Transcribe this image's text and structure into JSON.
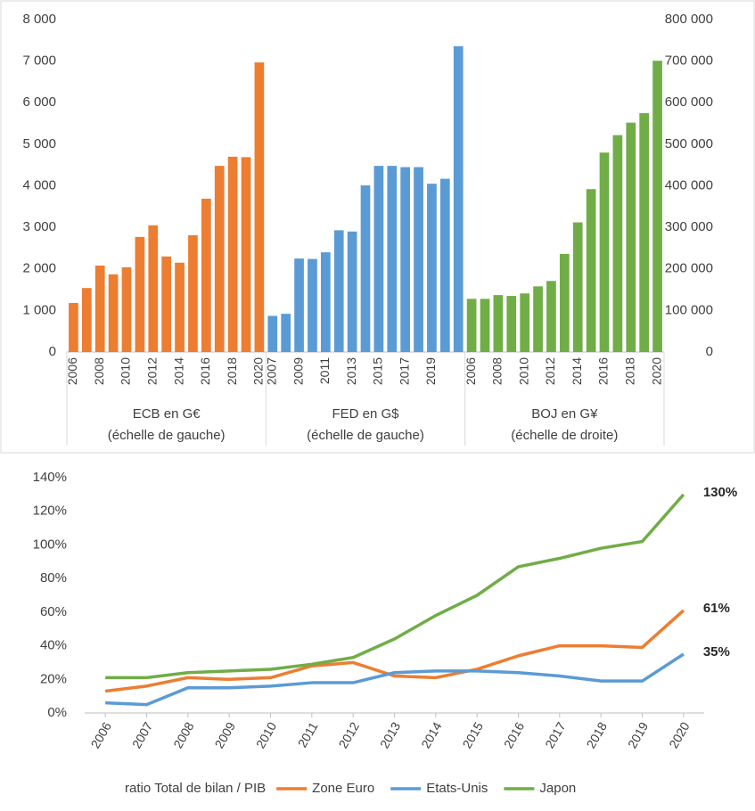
{
  "chart_data": [
    {
      "type": "grouped-bar",
      "series": [
        {
          "name": "ECB en G€",
          "note": "(échelle de gauche)",
          "color": "#ed7d31",
          "axis": "y",
          "categories": [
            "2006",
            null,
            "2008",
            null,
            "2010",
            null,
            "2012",
            null,
            "2014",
            null,
            "2016",
            null,
            "2018",
            null,
            "2020"
          ],
          "values": [
            1180,
            1540,
            2080,
            1870,
            2040,
            2770,
            3050,
            2300,
            2150,
            2810,
            3690,
            4480,
            4700,
            4690,
            6970
          ]
        },
        {
          "name": "FED en G$",
          "note": "(échelle de gauche)",
          "color": "#5b9bd5",
          "axis": "y",
          "categories": [
            "2007",
            null,
            "2009",
            null,
            "2011",
            null,
            "2013",
            null,
            "2015",
            null,
            "2017",
            null,
            "2019",
            null,
            null
          ],
          "values": [
            870,
            920,
            2250,
            2240,
            2400,
            2930,
            2900,
            4010,
            4480,
            4480,
            4450,
            4450,
            4050,
            4170,
            7360
          ]
        },
        {
          "name": "BOJ en G¥",
          "note": "(échelle de droite)",
          "color": "#70ad47",
          "axis": "y2",
          "categories": [
            "2006",
            null,
            "2008",
            null,
            "2010",
            null,
            "2012",
            null,
            "2014",
            null,
            "2016",
            null,
            "2018",
            null,
            "2020"
          ],
          "values": [
            128000,
            128000,
            137000,
            135000,
            141000,
            158000,
            171000,
            236000,
            312000,
            392000,
            480000,
            522000,
            552000,
            575000,
            701000
          ]
        }
      ],
      "ylim": [
        0,
        8000
      ],
      "yticks": [
        0,
        {
          "value": 1000,
          "label": "1 000"
        },
        {
          "value": 2000,
          "label": "2 000"
        },
        {
          "value": 3000,
          "label": "3 000"
        },
        {
          "value": 4000,
          "label": "4 000"
        },
        {
          "value": 5000,
          "label": "5 000"
        },
        {
          "value": 6000,
          "label": "6 000"
        },
        {
          "value": 7000,
          "label": "7 000"
        },
        {
          "value": 8000,
          "label": "8 000"
        }
      ],
      "y2lim": [
        0,
        800000
      ],
      "y2ticks": [
        0,
        {
          "value": 100000,
          "label": "100 000"
        },
        {
          "value": 200000,
          "label": "200 000"
        },
        {
          "value": 300000,
          "label": "300 000"
        },
        {
          "value": 400000,
          "label": "400 000"
        },
        {
          "value": 500000,
          "label": "500 000"
        },
        {
          "value": 600000,
          "label": "600 000"
        },
        {
          "value": 700000,
          "label": "700 000"
        },
        {
          "value": 800000,
          "label": "800 000"
        }
      ]
    },
    {
      "type": "line",
      "legend_title": "ratio Total de bilan / PIB",
      "categories": [
        "2006",
        "2007",
        "2008",
        "2009",
        "2010",
        "2011",
        "2012",
        "2013",
        "2014",
        "2015",
        "2016",
        "2017",
        "2018",
        "2019",
        "2020"
      ],
      "series": [
        {
          "name": "Zone Euro",
          "color": "#ed7d31",
          "values": [
            13,
            16,
            21,
            20,
            21,
            28,
            30,
            22,
            21,
            26,
            34,
            40,
            40,
            39,
            61
          ],
          "value_labels": [
            null,
            null,
            null,
            null,
            null,
            null,
            null,
            null,
            null,
            null,
            null,
            null,
            null,
            null,
            "61%"
          ]
        },
        {
          "name": "Etats-Unis",
          "color": "#5b9bd5",
          "values": [
            6,
            5,
            15,
            15,
            16,
            18,
            18,
            24,
            25,
            25,
            24,
            22,
            19,
            19,
            35
          ],
          "value_labels": [
            null,
            null,
            null,
            null,
            null,
            null,
            null,
            null,
            null,
            null,
            null,
            null,
            null,
            null,
            "35%"
          ]
        },
        {
          "name": "Japon",
          "color": "#70ad47",
          "values": [
            21,
            21,
            24,
            25,
            26,
            29,
            33,
            44,
            58,
            70,
            87,
            92,
            98,
            102,
            130
          ],
          "value_labels": [
            null,
            null,
            null,
            null,
            null,
            null,
            null,
            null,
            null,
            null,
            null,
            null,
            null,
            null,
            "130%"
          ]
        }
      ],
      "ylim": [
        0,
        140
      ],
      "yticks": [
        {
          "value": 0,
          "label": "0%"
        },
        {
          "value": 20,
          "label": "20%"
        },
        {
          "value": 40,
          "label": "40%"
        },
        {
          "value": 60,
          "label": "60%"
        },
        {
          "value": 80,
          "label": "80%"
        },
        {
          "value": 100,
          "label": "100%"
        },
        {
          "value": 120,
          "label": "120%"
        },
        {
          "value": 140,
          "label": "140%"
        }
      ]
    }
  ]
}
